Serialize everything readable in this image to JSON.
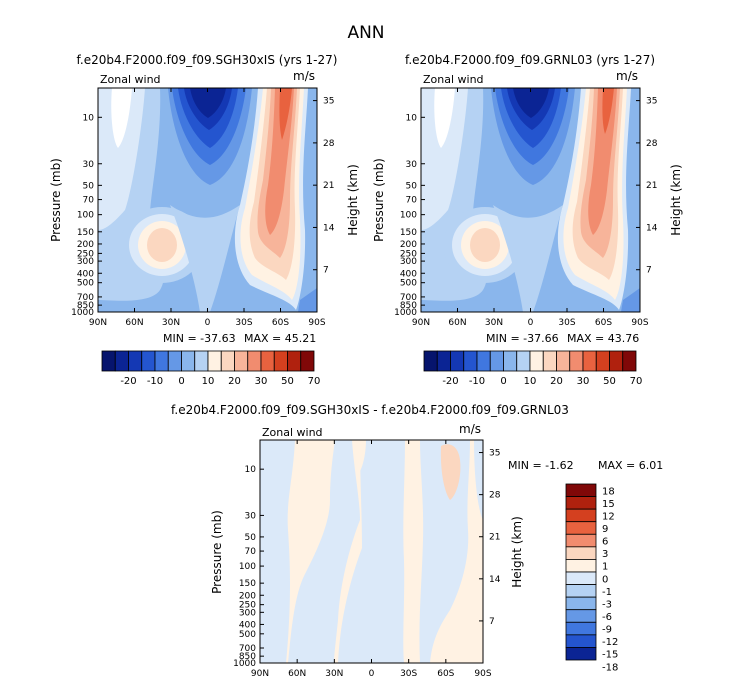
{
  "page": {
    "title": "ANN"
  },
  "colors": {
    "neg": [
      "#ffffff",
      "#dbe9f9",
      "#b5d2f3",
      "#8ab6ec",
      "#6598e6",
      "#4077df",
      "#2455cf",
      "#1438b4",
      "#0b2494",
      "#06146d"
    ],
    "pos": [
      "#fff2e3",
      "#fbd7c0",
      "#f7b49a",
      "#f18c6f",
      "#e8623f",
      "#d4401f",
      "#b0210e",
      "#800808"
    ]
  },
  "chart_data": [
    {
      "type": "heatmap",
      "id": "panel-left",
      "title": "f.e20b4.F2000.f09_f09.SGH30xIS (yrs 1-27)",
      "field": "Zonal wind",
      "units": "m/s",
      "ylabel": "Pressure (mb)",
      "y2label": "Height (km)",
      "x_ticks": [
        "90N",
        "60N",
        "30N",
        "0",
        "30S",
        "60S",
        "90S"
      ],
      "y_ticks": [
        "10",
        "30",
        "50",
        "70",
        "100",
        "150",
        "200",
        "250",
        "300",
        "400",
        "500",
        "700",
        "850",
        "1000"
      ],
      "y2_ticks": [
        "35",
        "28",
        "21",
        "14",
        "7"
      ],
      "min_label": "MIN = -37.63",
      "max_label": "MAX = 45.21",
      "colorbar": {
        "orientation": "horizontal",
        "labels": [
          "-20",
          "-10",
          "0",
          "10",
          "20",
          "30",
          "50",
          "70"
        ],
        "bins": 16
      }
    },
    {
      "type": "heatmap",
      "id": "panel-right",
      "title": "f.e20b4.F2000.f09_f09.GRNL03 (yrs 1-27)",
      "field": "Zonal wind",
      "units": "m/s",
      "ylabel": "Pressure (mb)",
      "y2label": "Height (km)",
      "x_ticks": [
        "90N",
        "60N",
        "30N",
        "0",
        "30S",
        "60S",
        "90S"
      ],
      "y_ticks": [
        "10",
        "30",
        "50",
        "70",
        "100",
        "150",
        "200",
        "250",
        "300",
        "400",
        "500",
        "700",
        "850",
        "1000"
      ],
      "y2_ticks": [
        "35",
        "28",
        "21",
        "14",
        "7"
      ],
      "min_label": "MIN = -37.66",
      "max_label": "MAX = 43.76",
      "colorbar": {
        "orientation": "horizontal",
        "labels": [
          "-20",
          "-10",
          "0",
          "10",
          "20",
          "30",
          "50",
          "70"
        ],
        "bins": 16
      }
    },
    {
      "type": "heatmap",
      "id": "panel-diff",
      "title": "f.e20b4.F2000.f09_f09.SGH30xIS - f.e20b4.F2000.f09_f09.GRNL03",
      "field": "Zonal wind",
      "units": "m/s",
      "ylabel": "Pressure (mb)",
      "y2label": "Height (km)",
      "x_ticks": [
        "90N",
        "60N",
        "30N",
        "0",
        "30S",
        "60S",
        "90S"
      ],
      "y_ticks": [
        "10",
        "30",
        "50",
        "70",
        "100",
        "150",
        "200",
        "250",
        "300",
        "400",
        "500",
        "700",
        "850",
        "1000"
      ],
      "y2_ticks": [
        "35",
        "28",
        "21",
        "14",
        "7"
      ],
      "min_label": "MIN = -1.62",
      "max_label": "MAX = 6.01",
      "colorbar": {
        "orientation": "vertical",
        "labels": [
          "18",
          "15",
          "12",
          "9",
          "6",
          "3",
          "1",
          "0",
          "-1",
          "-3",
          "-6",
          "-9",
          "-12",
          "-15",
          "-18"
        ],
        "bins": 14
      }
    }
  ]
}
